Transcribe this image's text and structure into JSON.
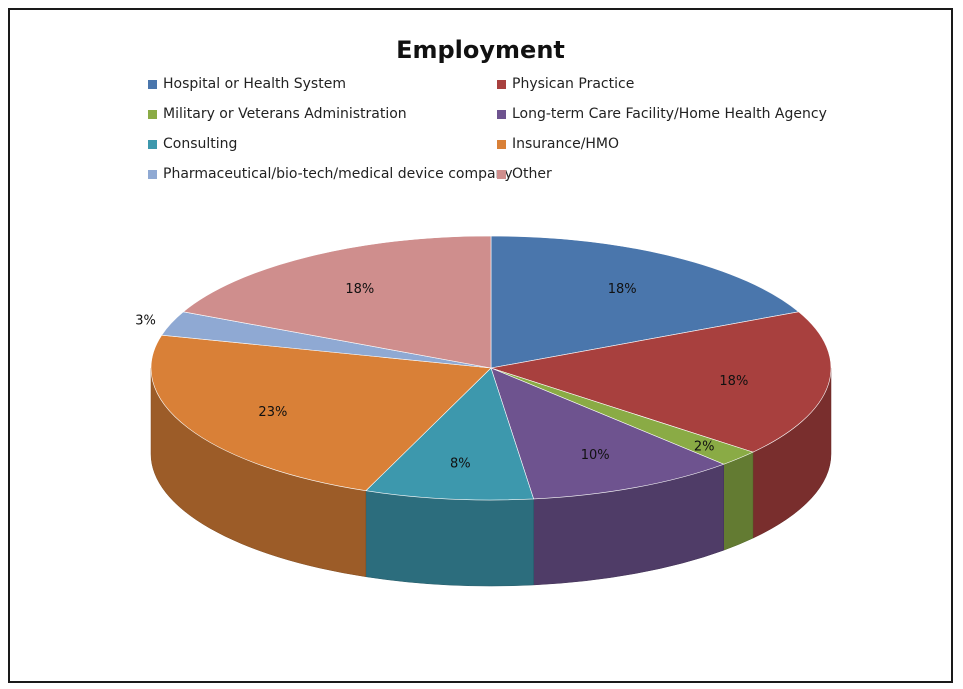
{
  "chart_data": {
    "type": "pie",
    "title": "Employment",
    "legend_position": "top",
    "slices": [
      {
        "label": "Hospital or Health System",
        "value": 18,
        "display": "18%",
        "color": "#4a76ac"
      },
      {
        "label": "Physican Practice",
        "value": 18,
        "display": "18%",
        "color": "#a8403e"
      },
      {
        "label": "Military or Veterans Administration",
        "value": 2,
        "display": "2%",
        "color": "#8aab45"
      },
      {
        "label": "Long-term Care Facility/Home Health Agency",
        "value": 10,
        "display": "10%",
        "color": "#6e538f"
      },
      {
        "label": "Consulting",
        "value": 8,
        "display": "8%",
        "color": "#3d98ad"
      },
      {
        "label": "Insurance/HMO",
        "value": 23,
        "display": "23%",
        "color": "#d98037"
      },
      {
        "label": "Pharmaceutical/bio-tech/medical device company",
        "value": 3,
        "display": "3%",
        "color": "#8fa9d3"
      },
      {
        "label": "Other",
        "value": 18,
        "display": "18%",
        "color": "#cf8e8d"
      }
    ]
  }
}
